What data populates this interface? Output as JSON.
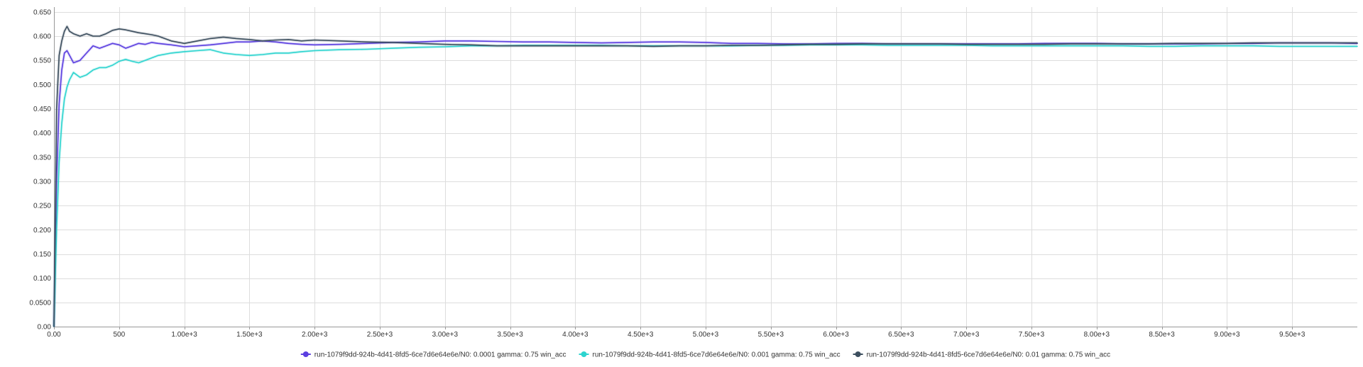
{
  "chart_data": {
    "type": "line",
    "title": "",
    "xlabel": "",
    "ylabel": "",
    "xlim": [
      0,
      10000
    ],
    "ylim": [
      0,
      0.66
    ],
    "grid": true,
    "legend_position": "bottom",
    "x_ticks": [
      {
        "value": 0,
        "label": "0.00"
      },
      {
        "value": 500,
        "label": "500"
      },
      {
        "value": 1000,
        "label": "1.00e+3"
      },
      {
        "value": 1500,
        "label": "1.50e+3"
      },
      {
        "value": 2000,
        "label": "2.00e+3"
      },
      {
        "value": 2500,
        "label": "2.50e+3"
      },
      {
        "value": 3000,
        "label": "3.00e+3"
      },
      {
        "value": 3500,
        "label": "3.50e+3"
      },
      {
        "value": 4000,
        "label": "4.00e+3"
      },
      {
        "value": 4500,
        "label": "4.50e+3"
      },
      {
        "value": 5000,
        "label": "5.00e+3"
      },
      {
        "value": 5500,
        "label": "5.50e+3"
      },
      {
        "value": 6000,
        "label": "6.00e+3"
      },
      {
        "value": 6500,
        "label": "6.50e+3"
      },
      {
        "value": 7000,
        "label": "7.00e+3"
      },
      {
        "value": 7500,
        "label": "7.50e+3"
      },
      {
        "value": 8000,
        "label": "8.00e+3"
      },
      {
        "value": 8500,
        "label": "8.50e+3"
      },
      {
        "value": 9000,
        "label": "9.00e+3"
      },
      {
        "value": 9500,
        "label": "9.50e+3"
      }
    ],
    "y_ticks": [
      {
        "value": 0,
        "label": "0.00"
      },
      {
        "value": 0.05,
        "label": "0.0500"
      },
      {
        "value": 0.1,
        "label": "0.100"
      },
      {
        "value": 0.15,
        "label": "0.150"
      },
      {
        "value": 0.2,
        "label": "0.200"
      },
      {
        "value": 0.25,
        "label": "0.250"
      },
      {
        "value": 0.3,
        "label": "0.300"
      },
      {
        "value": 0.35,
        "label": "0.350"
      },
      {
        "value": 0.4,
        "label": "0.400"
      },
      {
        "value": 0.45,
        "label": "0.450"
      },
      {
        "value": 0.5,
        "label": "0.500"
      },
      {
        "value": 0.55,
        "label": "0.550"
      },
      {
        "value": 0.6,
        "label": "0.600"
      },
      {
        "value": 0.65,
        "label": "0.650"
      }
    ],
    "series": [
      {
        "name": "run-1079f9dd-924b-4d41-8fd5-6ce7d6e64e6e/N0: 0.0001 gamma: 0.75 win_acc",
        "color": "#5b3fe0",
        "x": [
          0,
          20,
          40,
          60,
          80,
          100,
          120,
          150,
          200,
          250,
          300,
          350,
          400,
          450,
          500,
          550,
          600,
          650,
          700,
          750,
          800,
          900,
          1000,
          1100,
          1200,
          1300,
          1400,
          1500,
          1600,
          1700,
          1800,
          1900,
          2000,
          2200,
          2400,
          2600,
          2800,
          3000,
          3200,
          3400,
          3600,
          3800,
          4000,
          4200,
          4400,
          4600,
          4800,
          5000,
          5200,
          5400,
          5600,
          5800,
          6000,
          6200,
          6400,
          6600,
          6800,
          7000,
          7200,
          7400,
          7600,
          7800,
          8000,
          8200,
          8400,
          8600,
          8800,
          9000,
          9200,
          9400,
          9600,
          9800,
          10000
        ],
        "y": [
          0.0,
          0.3,
          0.46,
          0.53,
          0.565,
          0.57,
          0.56,
          0.545,
          0.55,
          0.565,
          0.58,
          0.575,
          0.58,
          0.585,
          0.582,
          0.575,
          0.58,
          0.585,
          0.583,
          0.587,
          0.585,
          0.582,
          0.578,
          0.58,
          0.582,
          0.585,
          0.588,
          0.588,
          0.59,
          0.588,
          0.585,
          0.583,
          0.582,
          0.583,
          0.585,
          0.587,
          0.588,
          0.59,
          0.59,
          0.589,
          0.588,
          0.588,
          0.587,
          0.586,
          0.587,
          0.588,
          0.588,
          0.587,
          0.585,
          0.585,
          0.584,
          0.584,
          0.585,
          0.585,
          0.584,
          0.584,
          0.584,
          0.584,
          0.584,
          0.584,
          0.585,
          0.585,
          0.585,
          0.584,
          0.584,
          0.584,
          0.584,
          0.585,
          0.585,
          0.586,
          0.586,
          0.586,
          0.585
        ]
      },
      {
        "name": "run-1079f9dd-924b-4d41-8fd5-6ce7d6e64e6e/N0: 0.001 gamma: 0.75 win_acc",
        "color": "#2dd4cf",
        "x": [
          0,
          20,
          40,
          60,
          80,
          100,
          120,
          150,
          200,
          250,
          300,
          350,
          400,
          450,
          500,
          550,
          600,
          650,
          700,
          750,
          800,
          900,
          1000,
          1100,
          1200,
          1300,
          1400,
          1500,
          1600,
          1700,
          1800,
          1900,
          2000,
          2200,
          2400,
          2600,
          2800,
          3000,
          3200,
          3400,
          3600,
          3800,
          4000,
          4200,
          4400,
          4600,
          4800,
          5000,
          5200,
          5400,
          5600,
          5800,
          6000,
          6200,
          6400,
          6600,
          6800,
          7000,
          7200,
          7400,
          7600,
          7800,
          8000,
          8200,
          8400,
          8600,
          8800,
          9000,
          9200,
          9400,
          9600,
          9800,
          10000
        ],
        "y": [
          0.0,
          0.2,
          0.34,
          0.42,
          0.47,
          0.495,
          0.51,
          0.525,
          0.515,
          0.52,
          0.53,
          0.535,
          0.535,
          0.54,
          0.548,
          0.552,
          0.548,
          0.545,
          0.55,
          0.555,
          0.56,
          0.565,
          0.568,
          0.57,
          0.572,
          0.565,
          0.562,
          0.56,
          0.562,
          0.565,
          0.565,
          0.568,
          0.57,
          0.572,
          0.573,
          0.575,
          0.577,
          0.578,
          0.58,
          0.58,
          0.581,
          0.581,
          0.581,
          0.581,
          0.58,
          0.58,
          0.58,
          0.58,
          0.58,
          0.581,
          0.581,
          0.582,
          0.582,
          0.582,
          0.581,
          0.581,
          0.581,
          0.581,
          0.58,
          0.58,
          0.58,
          0.58,
          0.58,
          0.58,
          0.579,
          0.579,
          0.58,
          0.58,
          0.58,
          0.579,
          0.579,
          0.579,
          0.579
        ]
      },
      {
        "name": "run-1079f9dd-924b-4d41-8fd5-6ce7d6e64e6e/N0: 0.01 gamma: 0.75 win_acc",
        "color": "#3d4f5f",
        "x": [
          0,
          20,
          40,
          60,
          80,
          100,
          120,
          150,
          200,
          250,
          300,
          350,
          400,
          450,
          500,
          550,
          600,
          650,
          700,
          750,
          800,
          900,
          1000,
          1100,
          1200,
          1300,
          1400,
          1500,
          1600,
          1700,
          1800,
          1900,
          2000,
          2200,
          2400,
          2600,
          2800,
          3000,
          3200,
          3400,
          3600,
          3800,
          4000,
          4200,
          4400,
          4600,
          4800,
          5000,
          5200,
          5400,
          5600,
          5800,
          6000,
          6200,
          6400,
          6600,
          6800,
          7000,
          7200,
          7400,
          7600,
          7800,
          8000,
          8200,
          8400,
          8600,
          8800,
          9000,
          9200,
          9400,
          9600,
          9800,
          10000
        ],
        "y": [
          0.0,
          0.45,
          0.56,
          0.59,
          0.61,
          0.62,
          0.61,
          0.605,
          0.6,
          0.605,
          0.6,
          0.6,
          0.605,
          0.612,
          0.615,
          0.613,
          0.61,
          0.607,
          0.605,
          0.603,
          0.6,
          0.59,
          0.585,
          0.59,
          0.595,
          0.598,
          0.595,
          0.593,
          0.59,
          0.592,
          0.593,
          0.59,
          0.592,
          0.59,
          0.588,
          0.587,
          0.585,
          0.583,
          0.582,
          0.58,
          0.58,
          0.58,
          0.58,
          0.58,
          0.58,
          0.579,
          0.58,
          0.58,
          0.581,
          0.581,
          0.582,
          0.583,
          0.583,
          0.584,
          0.584,
          0.584,
          0.584,
          0.583,
          0.583,
          0.583,
          0.583,
          0.584,
          0.584,
          0.584,
          0.584,
          0.585,
          0.585,
          0.585,
          0.586,
          0.586,
          0.586,
          0.586,
          0.586
        ]
      }
    ]
  }
}
